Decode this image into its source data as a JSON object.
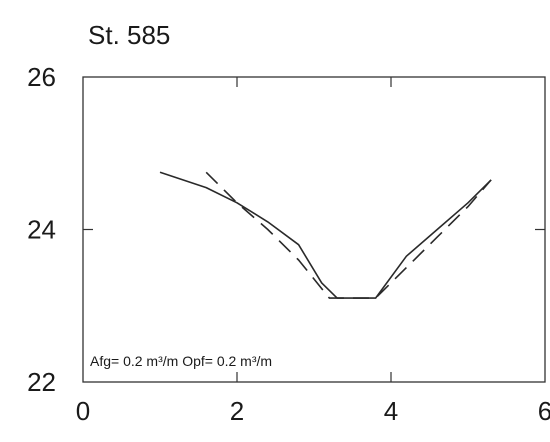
{
  "chart_data": {
    "type": "line",
    "title": "St. 585",
    "xlabel": "",
    "ylabel": "",
    "xlim": [
      0,
      6
    ],
    "ylim": [
      22,
      26
    ],
    "xticks": [
      "0",
      "2",
      "4",
      "6"
    ],
    "yticks": [
      "22",
      "24",
      "26"
    ],
    "grid": false,
    "annotation": "Afg= 0.2 m³/m  Opf= 0.2 m³/m",
    "series": [
      {
        "style": "solid",
        "x": [
          1.0,
          1.6,
          2.0,
          2.4,
          2.8,
          3.1,
          3.3,
          3.8,
          4.2,
          4.6,
          5.0,
          5.3
        ],
        "y": [
          24.75,
          24.55,
          24.35,
          24.1,
          23.8,
          23.3,
          23.1,
          23.1,
          23.65,
          24.0,
          24.35,
          24.65
        ]
      },
      {
        "style": "dashed",
        "x": [
          1.6,
          2.0,
          2.4,
          2.8,
          3.2,
          3.8,
          4.2,
          4.6,
          5.0,
          5.3
        ],
        "y": [
          24.75,
          24.35,
          24.0,
          23.6,
          23.1,
          23.1,
          23.5,
          23.9,
          24.3,
          24.65
        ]
      }
    ]
  }
}
